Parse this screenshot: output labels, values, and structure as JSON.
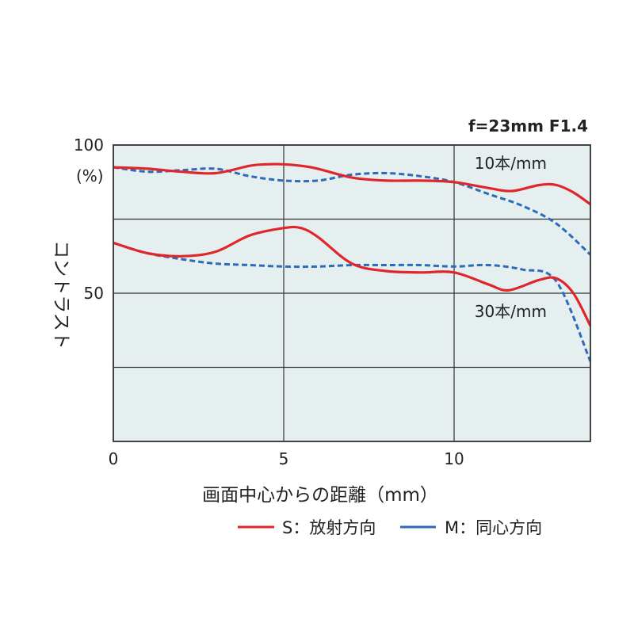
{
  "chart_data": {
    "type": "line",
    "title": "f=23mm F1.4",
    "xlabel": "画面中心からの距離（mm）",
    "ylabel": "コントラスト",
    "xlim": [
      0,
      14
    ],
    "ylim": [
      0,
      100
    ],
    "x_ticks": [
      0,
      5,
      10
    ],
    "y_ticks": [
      50,
      100
    ],
    "y_unit_label": "(%)",
    "grid": true,
    "plot_background": "#e6efef",
    "series": [
      {
        "name": "S：放射方向",
        "group": "10本/mm",
        "color": "#e0262b",
        "dash": false,
        "points": [
          [
            0,
            92.5
          ],
          [
            1,
            92
          ],
          [
            2,
            91
          ],
          [
            3,
            90.5
          ],
          [
            4,
            93
          ],
          [
            4.5,
            93.5
          ],
          [
            5,
            93.5
          ],
          [
            5.5,
            93
          ],
          [
            6,
            92
          ],
          [
            7,
            89
          ],
          [
            8,
            88
          ],
          [
            9,
            88
          ],
          [
            10,
            87.5
          ],
          [
            11,
            85.5
          ],
          [
            11.7,
            84.5
          ],
          [
            12.5,
            86.5
          ],
          [
            13,
            86.5
          ],
          [
            13.5,
            84
          ],
          [
            14,
            80
          ]
        ]
      },
      {
        "name": "M：同心方向",
        "group": "10本/mm",
        "color": "#2b6cb8",
        "dash": true,
        "points": [
          [
            0,
            92.5
          ],
          [
            1,
            91
          ],
          [
            2,
            91.5
          ],
          [
            3,
            92
          ],
          [
            4,
            89.5
          ],
          [
            5,
            88
          ],
          [
            6,
            88
          ],
          [
            7,
            90
          ],
          [
            8,
            90.5
          ],
          [
            9,
            89.5
          ],
          [
            10,
            87.5
          ],
          [
            11,
            83.5
          ],
          [
            12,
            79.5
          ],
          [
            13,
            73.5
          ],
          [
            14,
            63
          ]
        ]
      },
      {
        "name": "S：放射方向",
        "group": "30本/mm",
        "color": "#e0262b",
        "dash": false,
        "points": [
          [
            0,
            67
          ],
          [
            1,
            63.5
          ],
          [
            2,
            62.5
          ],
          [
            3,
            64
          ],
          [
            4,
            69.5
          ],
          [
            5,
            72
          ],
          [
            5.5,
            72
          ],
          [
            6,
            69
          ],
          [
            7,
            60
          ],
          [
            8,
            57.5
          ],
          [
            9,
            57
          ],
          [
            10,
            57
          ],
          [
            11,
            53
          ],
          [
            11.6,
            51
          ],
          [
            12.5,
            54.5
          ],
          [
            13,
            55
          ],
          [
            13.5,
            50
          ],
          [
            14,
            39
          ]
        ]
      },
      {
        "name": "M：同心方向",
        "group": "30本/mm",
        "color": "#2b6cb8",
        "dash": true,
        "points": [
          [
            0,
            67
          ],
          [
            1,
            63.5
          ],
          [
            2,
            61.5
          ],
          [
            3,
            60
          ],
          [
            4,
            59.5
          ],
          [
            5,
            59
          ],
          [
            6,
            59
          ],
          [
            7,
            59.5
          ],
          [
            8,
            59.5
          ],
          [
            9,
            59.5
          ],
          [
            10,
            59
          ],
          [
            11,
            59.5
          ],
          [
            12,
            58
          ],
          [
            13,
            54
          ],
          [
            14,
            27
          ]
        ]
      }
    ],
    "annotations": [
      {
        "text": "10本/mm",
        "x": 10.6,
        "y": 92
      },
      {
        "text": "30本/mm",
        "x": 10.6,
        "y": 42
      }
    ],
    "legend": {
      "placement": "bottom-right",
      "items": [
        {
          "label": "S：放射方向",
          "color": "#e0262b"
        },
        {
          "label": "M：同心方向",
          "color": "#2b6cb8"
        }
      ]
    }
  }
}
